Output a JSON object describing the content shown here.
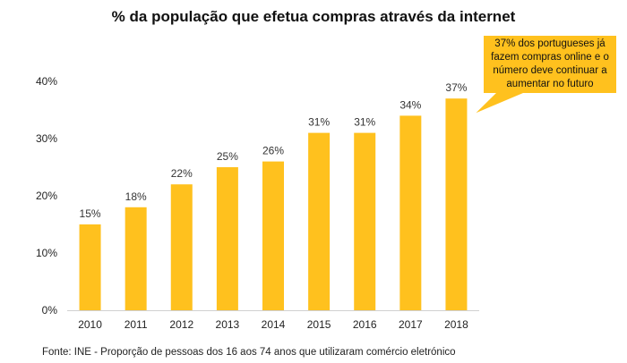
{
  "chart_data": {
    "type": "bar",
    "title": "% da população que efetua compras através da internet",
    "categories": [
      "2010",
      "2011",
      "2012",
      "2013",
      "2014",
      "2015",
      "2016",
      "2017",
      "2018"
    ],
    "values": [
      15,
      18,
      22,
      25,
      26,
      31,
      31,
      34,
      37
    ],
    "data_labels": [
      "15%",
      "18%",
      "22%",
      "25%",
      "26%",
      "31%",
      "31%",
      "34%",
      "37%"
    ],
    "yticks": [
      "0%",
      "10%",
      "20%",
      "30%",
      "40%"
    ],
    "ylim": [
      0,
      40
    ],
    "xlabel": "",
    "ylabel": "",
    "grid": false,
    "bar_color": "#FFC11E",
    "annotation": "37% dos portugueses já fazem compras online e o número deve continuar a aumentar no futuro",
    "annotation_color": "#FFC11E",
    "source": "Fonte: INE - Proporção de pessoas dos 16 aos 74 anos que utilizaram comércio eletrónico"
  }
}
